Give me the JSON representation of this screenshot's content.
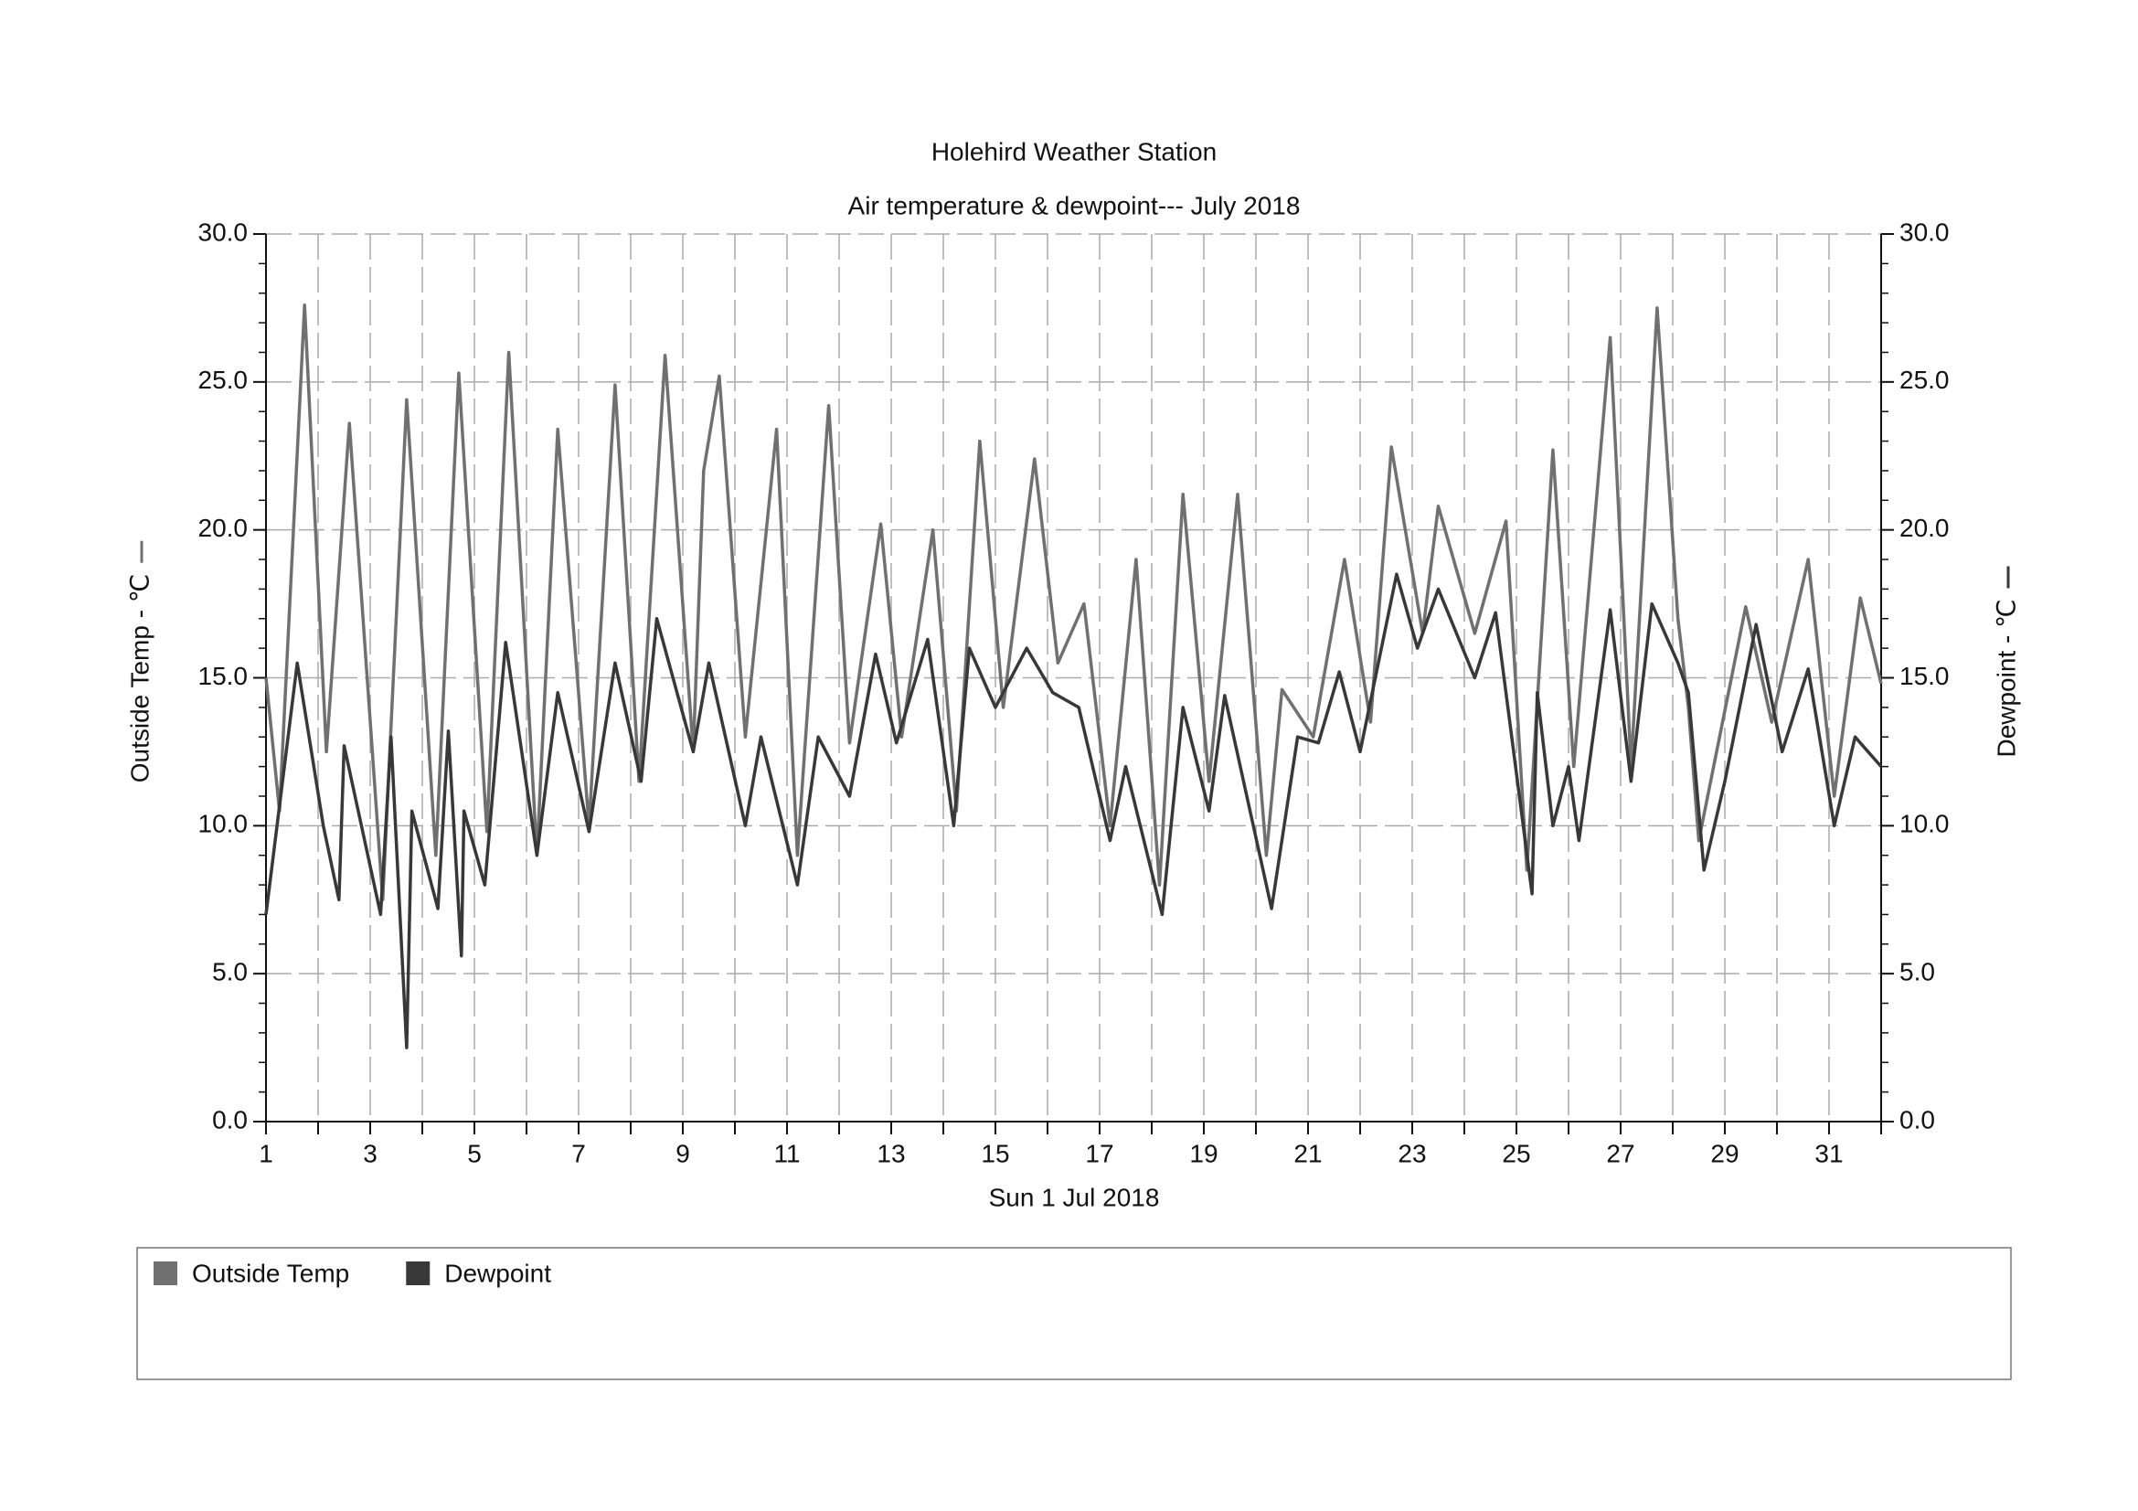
{
  "chart_data": {
    "type": "line",
    "title": "Holehird Weather Station",
    "subtitle": "Air temperature & dewpoint--- July 2018",
    "x_label": "Sun 1 Jul 2018",
    "y_label": "Outside Temp - ℃",
    "y2_label": "Dewpoint - ℃",
    "xlim": [
      1,
      32
    ],
    "xticks": [
      1,
      3,
      5,
      7,
      9,
      11,
      13,
      15,
      17,
      19,
      21,
      23,
      25,
      27,
      29,
      31
    ],
    "x_minor_ticks": [
      2,
      4,
      6,
      8,
      10,
      12,
      14,
      16,
      18,
      20,
      22,
      24,
      26,
      28,
      30,
      32
    ],
    "ylim": [
      0,
      30
    ],
    "yticks": [
      {
        "value": 0,
        "label": "0.0"
      },
      {
        "value": 5,
        "label": "5.0"
      },
      {
        "value": 10,
        "label": "10.0"
      },
      {
        "value": 15,
        "label": "15.0"
      },
      {
        "value": 20,
        "label": "20.0"
      },
      {
        "value": 25,
        "label": "25.0"
      },
      {
        "value": 30,
        "label": "30.0"
      }
    ],
    "y2lim": [
      0,
      30
    ],
    "y2ticks": [
      {
        "value": 0,
        "label": "0.0"
      },
      {
        "value": 5,
        "label": "5.0"
      },
      {
        "value": 10,
        "label": "10.0"
      },
      {
        "value": 15,
        "label": "15.0"
      },
      {
        "value": 20,
        "label": "20.0"
      },
      {
        "value": 25,
        "label": "25.0"
      },
      {
        "value": 30,
        "label": "30.0"
      }
    ],
    "grid": true,
    "legend": "bottom",
    "series": [
      {
        "name": "Outside Temp",
        "color": "#707070",
        "x": [
          1,
          1.26,
          1.74,
          2.16,
          2.6,
          3.24,
          3.7,
          4.26,
          4.7,
          5.24,
          5.66,
          6.2,
          6.6,
          7.2,
          7.7,
          8.16,
          8.66,
          9.2,
          9.4,
          9.7,
          10.2,
          10.8,
          11.2,
          11.8,
          12.2,
          12.8,
          13.2,
          13.8,
          14.25,
          14.7,
          15.15,
          15.75,
          16.2,
          16.7,
          17.2,
          17.7,
          18.15,
          18.6,
          19.1,
          19.65,
          20.2,
          20.5,
          21.1,
          21.7,
          22.2,
          22.6,
          23.2,
          23.5,
          24.2,
          24.8,
          25.2,
          25.7,
          26.1,
          26.8,
          27.2,
          27.7,
          28.1,
          28.3,
          28.5,
          29.4,
          29.9,
          30.6,
          31.1,
          31.6,
          32
        ],
        "values": [
          15,
          10.5,
          27.6,
          12.5,
          23.6,
          7.5,
          24.4,
          9,
          25.3,
          9.8,
          26,
          9,
          23.4,
          10,
          24.9,
          11.5,
          25.9,
          12.5,
          22,
          25.2,
          13,
          23.4,
          9,
          24.2,
          12.8,
          20.2,
          13,
          20,
          10.5,
          23,
          14,
          22.4,
          15.5,
          17.5,
          10,
          19,
          8,
          21.2,
          11.5,
          21.2,
          9,
          14.6,
          13,
          19,
          13.5,
          22.8,
          16.5,
          20.8,
          16.5,
          20.3,
          8.5,
          22.7,
          12,
          26.5,
          12,
          27.5,
          17,
          14,
          9.5,
          17.4,
          13.5,
          19,
          11,
          17.7,
          14.8
        ]
      },
      {
        "name": "Dewpoint",
        "color": "#383838",
        "axis": "y2",
        "x": [
          1,
          1.6,
          2.1,
          2.4,
          2.5,
          3.2,
          3.4,
          3.7,
          3.8,
          4.3,
          4.5,
          4.75,
          4.8,
          5.2,
          5.6,
          6.2,
          6.6,
          7.2,
          7.7,
          8.2,
          8.5,
          9.2,
          9.5,
          10.2,
          10.5,
          11.2,
          11.6,
          12.2,
          12.7,
          13.1,
          13.7,
          14.2,
          14.5,
          15,
          15.6,
          16.1,
          16.6,
          17.2,
          17.5,
          18.2,
          18.6,
          19.1,
          19.4,
          20.3,
          20.8,
          21.2,
          21.6,
          22,
          22.7,
          23.1,
          23.5,
          24.2,
          24.6,
          25.3,
          25.4,
          25.7,
          26,
          26.2,
          26.8,
          27.2,
          27.6,
          28.1,
          28.3,
          28.6,
          29,
          29.6,
          30.1,
          30.6,
          31.1,
          31.5,
          32
        ],
        "values": [
          7,
          15.5,
          10,
          7.5,
          12.7,
          7,
          13,
          2.5,
          10.5,
          7.2,
          13.2,
          5.6,
          10.5,
          8,
          16.2,
          9,
          14.5,
          9.8,
          15.5,
          11.5,
          17,
          12.5,
          15.5,
          10,
          13,
          8,
          13,
          11,
          15.8,
          12.8,
          16.3,
          10,
          16,
          14,
          16,
          14.5,
          14,
          9.5,
          12,
          7,
          14,
          10.5,
          14.4,
          7.2,
          13,
          12.8,
          15.2,
          12.5,
          18.5,
          16,
          18,
          15,
          17.2,
          7.7,
          14.5,
          10,
          12,
          9.5,
          17.3,
          11.5,
          17.5,
          15.5,
          14.5,
          8.5,
          11.5,
          16.8,
          12.5,
          15.3,
          10,
          13,
          12
        ]
      }
    ]
  }
}
